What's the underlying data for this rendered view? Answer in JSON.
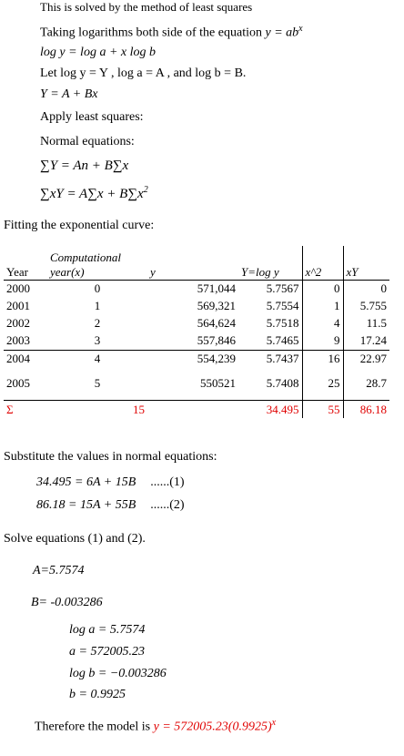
{
  "intro": [
    "This is solved by the method of least squares",
    "Taking logarithms both side of the equation"
  ],
  "model_eq": {
    "base": "y = ab",
    "exp": "x"
  },
  "steps": [
    "log y = log a + x log b",
    "Let log y = Y , log a = A , and log b = B.",
    "Y = A + Bx",
    "Apply least squares:",
    "Normal equations:",
    "∑Y = An + B∑x"
  ],
  "normal_eq2": {
    "base": "∑xY = A∑x + B∑x",
    "exp": "2"
  },
  "fitting_title": "Fitting the exponential curve:",
  "table": {
    "header": [
      "Year",
      "Computational year(x)",
      "y",
      "Y=log y",
      "x^2",
      "xY"
    ],
    "rows": [
      [
        "2000",
        "0",
        "571,044",
        "5.7567",
        "0",
        "0"
      ],
      [
        "2001",
        "1",
        "569,321",
        "5.7554",
        "1",
        "5.755"
      ],
      [
        "2002",
        "2",
        "564,624",
        "5.7518",
        "4",
        "11.5"
      ],
      [
        "2003",
        "3",
        "557,846",
        "5.7465",
        "9",
        "17.24"
      ],
      [
        "2004",
        "4",
        "554,239",
        "5.7437",
        "16",
        "22.97"
      ],
      [
        "2005",
        "5",
        "550521",
        "5.7408",
        "25",
        "28.7"
      ]
    ],
    "totals": {
      "label": "Σ",
      "x": "15",
      "Y": "34.495",
      "x2": "55",
      "xY": "86.18"
    }
  },
  "substitute_title": "Substitute the values in normal equations:",
  "equations": [
    {
      "eq": "34.495 = 6A + 15B",
      "ref": "......(1)"
    },
    {
      "eq": "86.18 = 15A + 55B",
      "ref": "......(2)"
    }
  ],
  "solve_title": "Solve equations (1) and (2).",
  "solutions": [
    "A=5.7574",
    "B= -0.003286"
  ],
  "results": [
    "log a = 5.7574",
    "a = 572005.23",
    "log b = −0.003286",
    "b = 0.9925"
  ],
  "conclusion": {
    "text": "Therefore the model is",
    "model": "y = 572005.23(0.9925)",
    "exp": "x"
  }
}
